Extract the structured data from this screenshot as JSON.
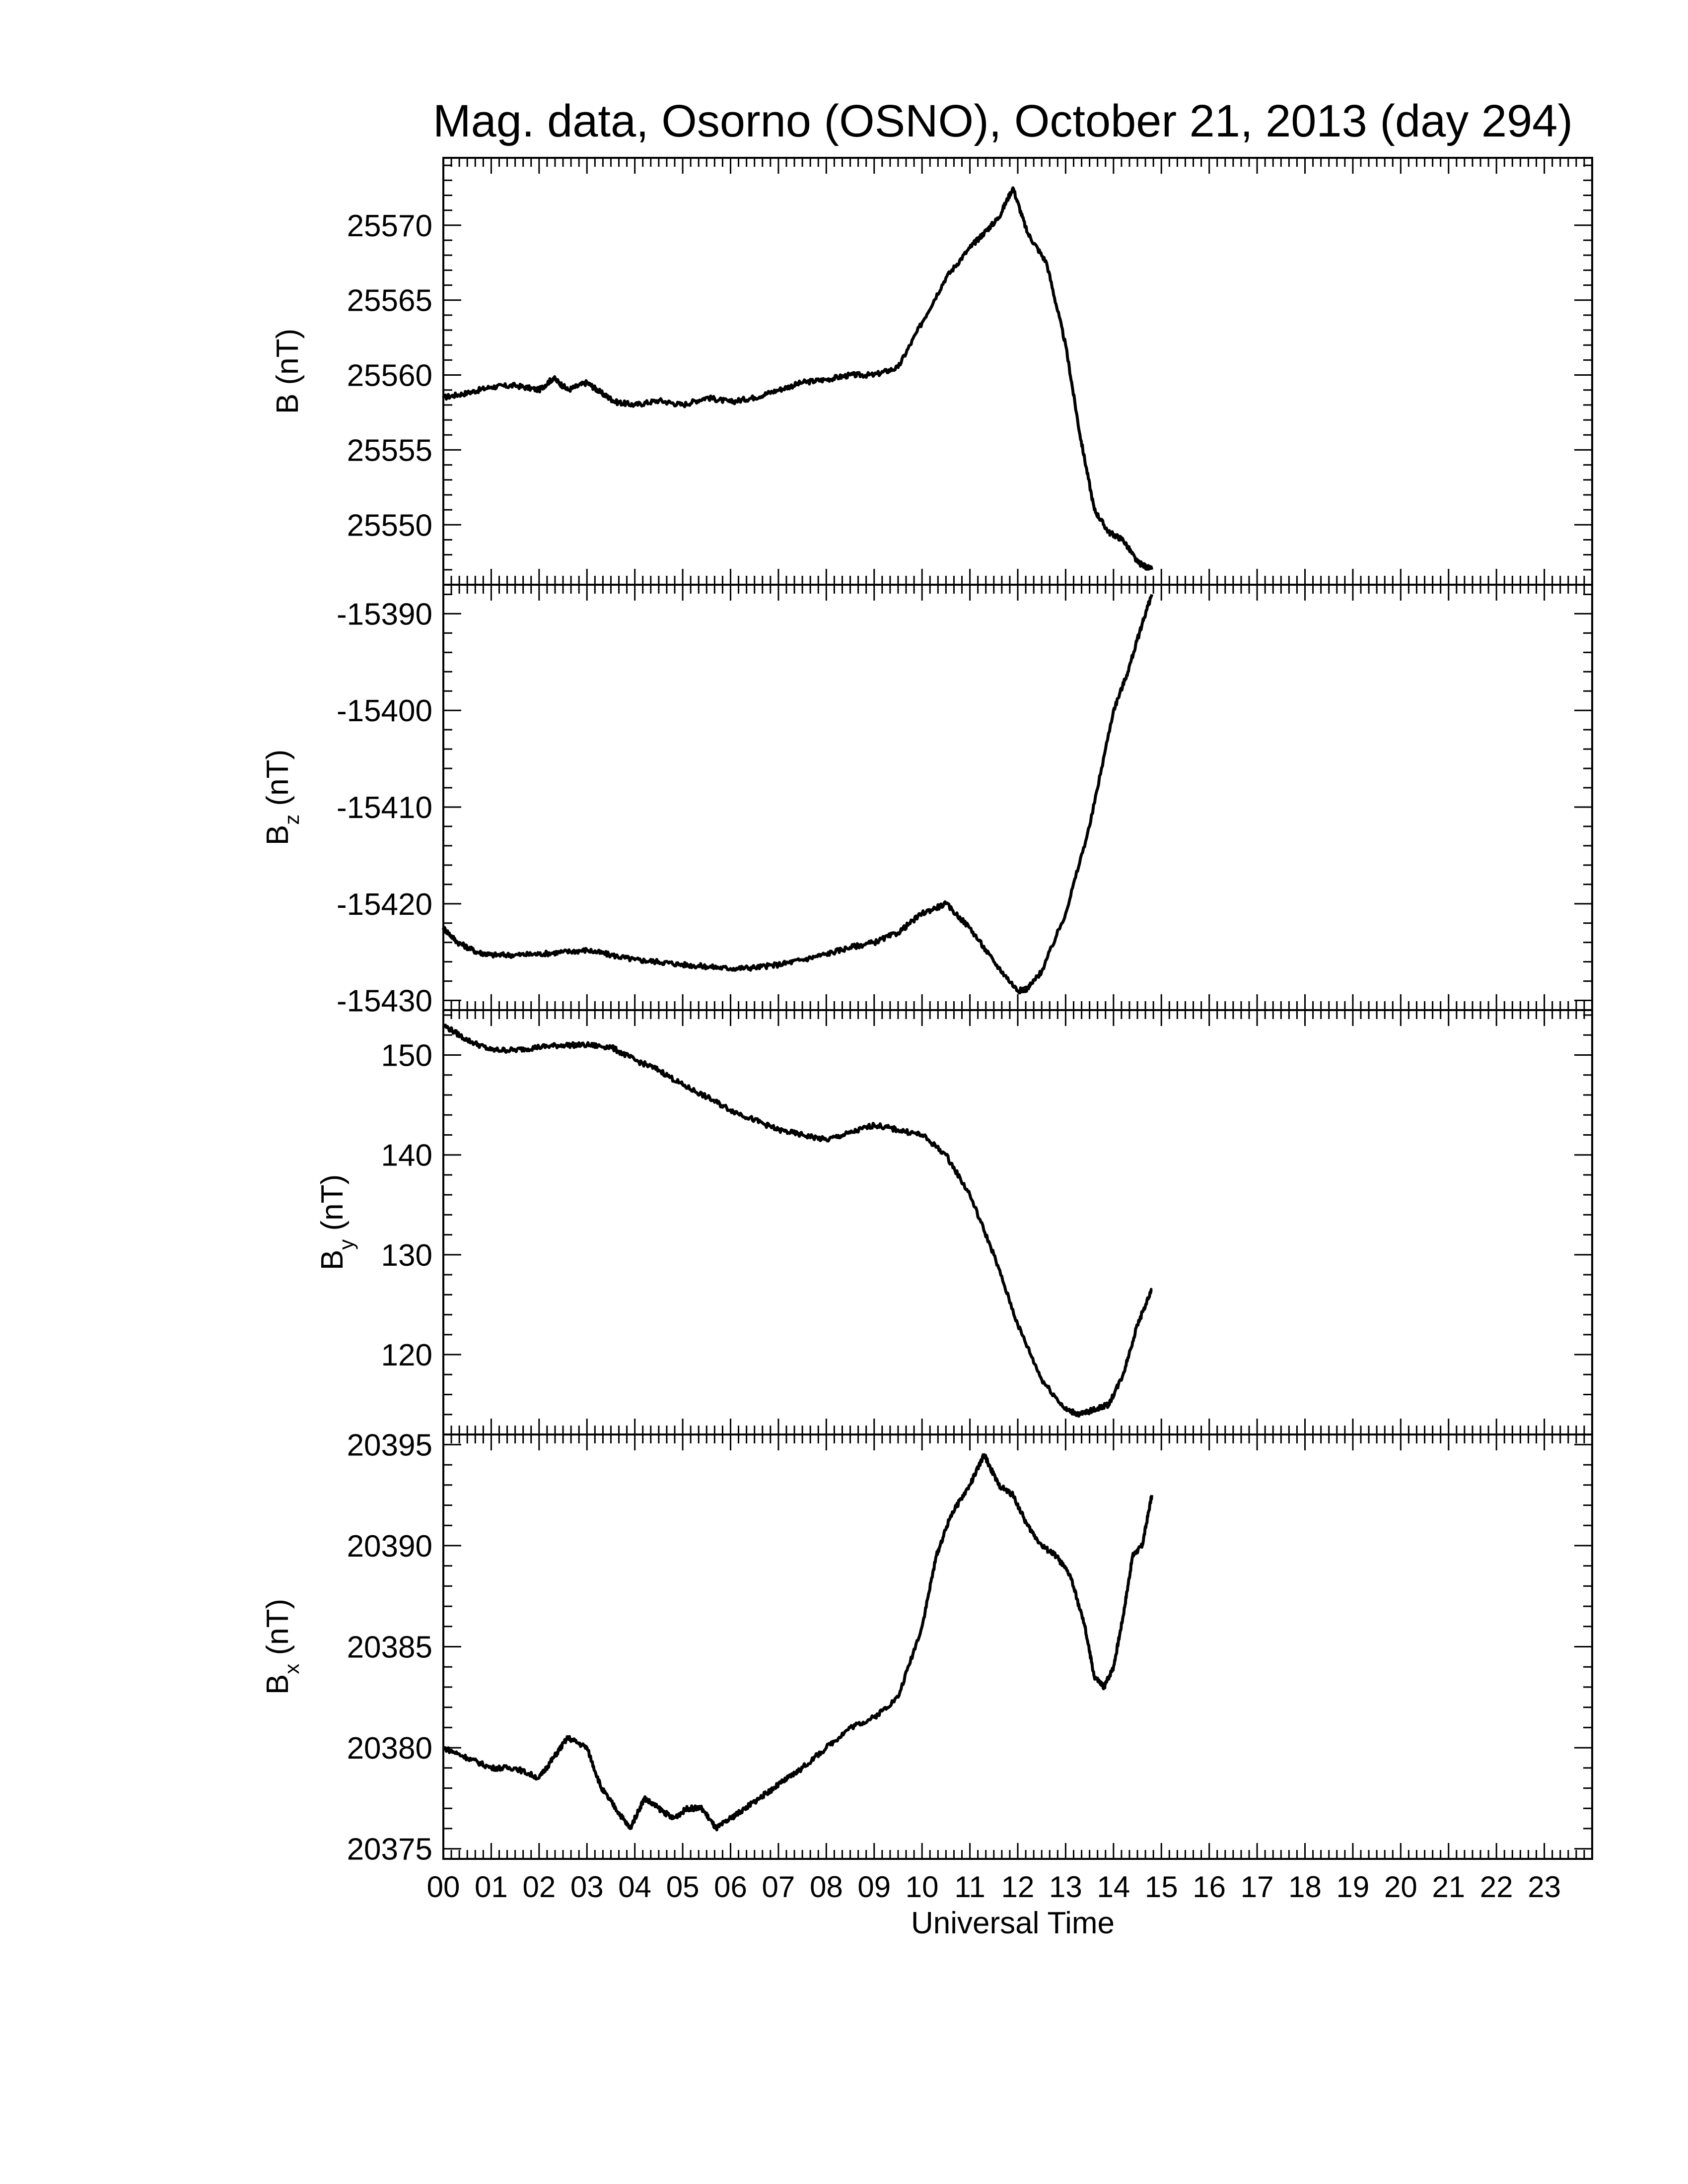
{
  "chart_data": {
    "type": "line",
    "title": "Mag. data, Osorno (OSNO), October 21, 2013 (day 294)",
    "xlabel": "Universal Time",
    "x_units": "hours UT",
    "xlim": [
      0,
      24
    ],
    "x_tick_labels": [
      "00",
      "01",
      "02",
      "03",
      "04",
      "05",
      "06",
      "07",
      "08",
      "09",
      "10",
      "11",
      "12",
      "13",
      "14",
      "15",
      "16",
      "17",
      "18",
      "19",
      "20",
      "21",
      "22",
      "23"
    ],
    "colors": {
      "line": "#000000",
      "axis": "#000000",
      "background": "#ffffff"
    },
    "panels": [
      {
        "id": "B",
        "ylabel_main": "B",
        "ylabel_sub": "",
        "ylabel_unit": "(nT)",
        "ylim": [
          25546,
          25574.5
        ],
        "yticks": [
          25550,
          25555,
          25560,
          25565,
          25570
        ],
        "series": [
          {
            "x": [
              0,
              0.5,
              1,
              1.5,
              2,
              2.3,
              2.6,
              3,
              3.3,
              3.6,
              4,
              4.5,
              5,
              5.5,
              6,
              6.5,
              7,
              7.5,
              8,
              8.5,
              9,
              9.5,
              10,
              10.5,
              11,
              11.3,
              11.6,
              11.9,
              12.2,
              12.6,
              13,
              13.3,
              13.6,
              13.9,
              14.2,
              14.5,
              14.8
            ],
            "y": [
              25558.5,
              25558.8,
              25559.2,
              25559.3,
              25559.0,
              25559.8,
              25559.0,
              25559.5,
              25558.8,
              25558.2,
              25558.0,
              25558.3,
              25558.0,
              25558.5,
              25558.2,
              25558.5,
              25559.0,
              25559.5,
              25559.7,
              25560.0,
              25560.0,
              25560.5,
              25563.5,
              25566.5,
              25568.5,
              25569.5,
              25570.5,
              25572.5,
              25569.5,
              25567.5,
              25562,
              25556,
              25551,
              25549.5,
              25549,
              25547.5,
              25547
            ]
          }
        ]
      },
      {
        "id": "Bz",
        "ylabel_main": "B",
        "ylabel_sub": "z",
        "ylabel_unit": "(nT)",
        "ylim": [
          -15431,
          -15387
        ],
        "yticks": [
          -15390,
          -15400,
          -15410,
          -15420,
          -15430
        ],
        "series": [
          {
            "x": [
              0,
              0.3,
              0.7,
              1,
              1.5,
              2,
              2.5,
              3,
              3.5,
              4,
              4.5,
              5,
              5.5,
              6,
              6.5,
              7,
              7.5,
              8,
              8.5,
              9,
              9.5,
              10,
              10.5,
              11,
              11.5,
              12,
              12.2,
              12.5,
              13,
              13.5,
              14,
              14.3,
              14.6,
              14.8
            ],
            "y": [
              -15422.5,
              -15424,
              -15425,
              -15425.3,
              -15425.3,
              -15425.2,
              -15425,
              -15424.8,
              -15425.3,
              -15425.8,
              -15426,
              -15426.3,
              -15426.5,
              -15426.7,
              -15426.6,
              -15426.3,
              -15425.8,
              -15425.2,
              -15424.5,
              -15424,
              -15423,
              -15421,
              -15420,
              -15422.5,
              -15426,
              -15429,
              -15428.8,
              -15427,
              -15421,
              -15412,
              -15400,
              -15396,
              -15391,
              -15388
            ]
          }
        ]
      },
      {
        "id": "By",
        "ylabel_main": "B",
        "ylabel_sub": "y",
        "ylabel_unit": "(nT)",
        "ylim": [
          112,
          154.5
        ],
        "yticks": [
          120,
          130,
          140,
          150
        ],
        "series": [
          {
            "x": [
              0,
              0.5,
              1,
              1.5,
              2,
              2.5,
              3,
              3.5,
              4,
              4.5,
              5,
              5.5,
              6,
              6.5,
              7,
              7.5,
              8,
              8.5,
              9,
              9.5,
              10,
              10.5,
              11,
              11.5,
              12,
              12.5,
              13,
              13.3,
              13.6,
              13.9,
              14.2,
              14.5,
              14.8
            ],
            "y": [
              153,
              151.5,
              150.5,
              150.5,
              150.8,
              151,
              151,
              150.8,
              149.5,
              148.5,
              147,
              145.8,
              144.5,
              143.5,
              142.5,
              142,
              141.5,
              142.2,
              143,
              142.5,
              142,
              140,
              136,
              130,
              123,
              117.5,
              114.5,
              114,
              114.5,
              115,
              118,
              123,
              126.5
            ]
          }
        ]
      },
      {
        "id": "Bx",
        "ylabel_main": "B",
        "ylabel_sub": "x",
        "ylabel_unit": "(nT)",
        "ylim": [
          20374.5,
          20395.5
        ],
        "yticks": [
          20375,
          20380,
          20385,
          20390,
          20395
        ],
        "series": [
          {
            "x": [
              0,
              0.5,
              1,
              1.5,
              2,
              2.3,
              2.6,
              3,
              3.3,
              3.6,
              3.9,
              4.2,
              4.5,
              4.8,
              5.1,
              5.4,
              5.7,
              6,
              6.3,
              6.6,
              6.9,
              7.2,
              7.5,
              8,
              8.5,
              9,
              9.5,
              10,
              10.3,
              10.6,
              11,
              11.3,
              11.6,
              11.9,
              12.2,
              12.5,
              12.8,
              13.1,
              13.4,
              13.6,
              13.8,
              14,
              14.2,
              14.4,
              14.6,
              14.8
            ],
            "y": [
              20380,
              20379.5,
              20379,
              20379,
              20378.5,
              20379.5,
              20380.5,
              20380,
              20378,
              20377,
              20376,
              20377.5,
              20377,
              20376.5,
              20377,
              20377,
              20376,
              20376.5,
              20377,
              20377.5,
              20378,
              20378.5,
              20379,
              20380,
              20381,
              20381.5,
              20382.5,
              20386,
              20389.5,
              20391.5,
              20393,
              20394.5,
              20393,
              20392.5,
              20391,
              20390,
              20389.5,
              20388.5,
              20386,
              20383.5,
              20383,
              20384,
              20386.5,
              20389.5,
              20390,
              20392.5
            ]
          }
        ]
      }
    ],
    "grid": false,
    "legend": "none"
  }
}
